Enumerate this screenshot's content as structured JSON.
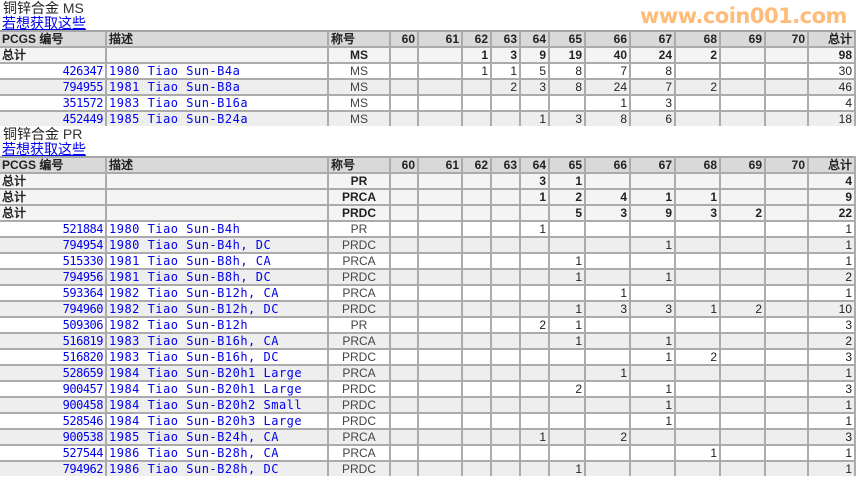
{
  "columns": [
    "PCGS 编号",
    "描述",
    "称号",
    "60",
    "61",
    "62",
    "63",
    "64",
    "65",
    "66",
    "67",
    "68",
    "69",
    "70",
    "总计"
  ],
  "sections": [
    {
      "title": "铜锌合金",
      "grade_type": "MS",
      "link": "若想获取这些",
      "totals": [
        {
          "label": "总计",
          "grade": "MS",
          "counts": [
            "",
            "",
            "1",
            "3",
            "9",
            "19",
            "40",
            "24",
            "2",
            "",
            ""
          ],
          "total": "98"
        }
      ],
      "rows": [
        {
          "code": "426347",
          "desc": "1980 Tiao Sun-B4a",
          "grade": "MS",
          "counts": [
            "",
            "",
            "1",
            "1",
            "5",
            "8",
            "7",
            "8",
            "",
            "",
            ""
          ],
          "total": "30"
        },
        {
          "code": "794955",
          "desc": "1981 Tiao Sun-B8a",
          "grade": "MS",
          "counts": [
            "",
            "",
            "",
            "2",
            "3",
            "8",
            "24",
            "7",
            "2",
            "",
            ""
          ],
          "total": "46"
        },
        {
          "code": "351572",
          "desc": "1983 Tiao Sun-B16a",
          "grade": "MS",
          "counts": [
            "",
            "",
            "",
            "",
            "",
            "",
            "1",
            "3",
            "",
            "",
            ""
          ],
          "total": "4"
        },
        {
          "code": "452449",
          "desc": "1985 Tiao Sun-B24a",
          "grade": "MS",
          "counts": [
            "",
            "",
            "",
            "",
            "1",
            "3",
            "8",
            "6",
            "",
            "",
            ""
          ],
          "total": "18"
        }
      ]
    },
    {
      "title": "铜锌合金",
      "grade_type": "PR",
      "link": "若想获取这些",
      "totals": [
        {
          "label": "总计",
          "grade": "PR",
          "counts": [
            "",
            "",
            "",
            "",
            "3",
            "1",
            "",
            "",
            "",
            "",
            ""
          ],
          "total": "4"
        },
        {
          "label": "总计",
          "grade": "PRCA",
          "counts": [
            "",
            "",
            "",
            "",
            "1",
            "2",
            "4",
            "1",
            "1",
            "",
            ""
          ],
          "total": "9"
        },
        {
          "label": "总计",
          "grade": "PRDC",
          "counts": [
            "",
            "",
            "",
            "",
            "",
            "5",
            "3",
            "9",
            "3",
            "2",
            ""
          ],
          "total": "22"
        }
      ],
      "rows": [
        {
          "code": "521884",
          "desc": "1980 Tiao Sun-B4h",
          "grade": "PR",
          "counts": [
            "",
            "",
            "",
            "",
            "1",
            "",
            "",
            "",
            "",
            "",
            ""
          ],
          "total": "1"
        },
        {
          "code": "794954",
          "desc": "1980 Tiao Sun-B4h, DC",
          "grade": "PRDC",
          "counts": [
            "",
            "",
            "",
            "",
            "",
            "",
            "",
            "1",
            "",
            "",
            ""
          ],
          "total": "1"
        },
        {
          "code": "515330",
          "desc": "1981 Tiao Sun-B8h, CA",
          "grade": "PRCA",
          "counts": [
            "",
            "",
            "",
            "",
            "",
            "1",
            "",
            "",
            "",
            "",
            ""
          ],
          "total": "1"
        },
        {
          "code": "794956",
          "desc": "1981 Tiao Sun-B8h, DC",
          "grade": "PRDC",
          "counts": [
            "",
            "",
            "",
            "",
            "",
            "1",
            "",
            "1",
            "",
            "",
            ""
          ],
          "total": "2"
        },
        {
          "code": "593364",
          "desc": "1982 Tiao Sun-B12h, CA",
          "grade": "PRCA",
          "counts": [
            "",
            "",
            "",
            "",
            "",
            "",
            "1",
            "",
            "",
            "",
            ""
          ],
          "total": "1"
        },
        {
          "code": "794960",
          "desc": "1982 Tiao Sun-B12h, DC",
          "grade": "PRDC",
          "counts": [
            "",
            "",
            "",
            "",
            "",
            "1",
            "3",
            "3",
            "1",
            "2",
            ""
          ],
          "total": "10"
        },
        {
          "code": "509306",
          "desc": "1982 Tiao Sun-B12h",
          "grade": "PR",
          "counts": [
            "",
            "",
            "",
            "",
            "2",
            "1",
            "",
            "",
            "",
            "",
            ""
          ],
          "total": "3"
        },
        {
          "code": "516819",
          "desc": "1983 Tiao Sun-B16h, CA",
          "grade": "PRCA",
          "counts": [
            "",
            "",
            "",
            "",
            "",
            "1",
            "",
            "1",
            "",
            "",
            ""
          ],
          "total": "2"
        },
        {
          "code": "516820",
          "desc": "1983 Tiao Sun-B16h, DC",
          "grade": "PRDC",
          "counts": [
            "",
            "",
            "",
            "",
            "",
            "",
            "",
            "1",
            "2",
            "",
            ""
          ],
          "total": "3"
        },
        {
          "code": "528659",
          "desc": "1984 Tiao Sun-B20h1 Large",
          "grade": "PRCA",
          "counts": [
            "",
            "",
            "",
            "",
            "",
            "",
            "1",
            "",
            "",
            "",
            ""
          ],
          "total": "1"
        },
        {
          "code": "900457",
          "desc": "1984 Tiao Sun-B20h1 Large",
          "grade": "PRDC",
          "counts": [
            "",
            "",
            "",
            "",
            "",
            "2",
            "",
            "1",
            "",
            "",
            ""
          ],
          "total": "3"
        },
        {
          "code": "900458",
          "desc": "1984 Tiao Sun-B20h2 Small",
          "grade": "PRDC",
          "counts": [
            "",
            "",
            "",
            "",
            "",
            "",
            "",
            "1",
            "",
            "",
            ""
          ],
          "total": "1"
        },
        {
          "code": "528546",
          "desc": "1984 Tiao Sun-B20h3 Large",
          "grade": "PRDC",
          "counts": [
            "",
            "",
            "",
            "",
            "",
            "",
            "",
            "1",
            "",
            "",
            ""
          ],
          "total": "1"
        },
        {
          "code": "900538",
          "desc": "1985 Tiao Sun-B24h, CA",
          "grade": "PRCA",
          "counts": [
            "",
            "",
            "",
            "",
            "1",
            "",
            "2",
            "",
            "",
            "",
            ""
          ],
          "total": "3"
        },
        {
          "code": "527544",
          "desc": "1986 Tiao Sun-B28h, CA",
          "grade": "PRCA",
          "counts": [
            "",
            "",
            "",
            "",
            "",
            "",
            "",
            "",
            "1",
            "",
            ""
          ],
          "total": "1"
        },
        {
          "code": "794962",
          "desc": "1986 Tiao Sun-B28h, DC",
          "grade": "PRDC",
          "counts": [
            "",
            "",
            "",
            "",
            "",
            "1",
            "",
            "",
            "",
            "",
            ""
          ],
          "total": "1"
        }
      ]
    }
  ],
  "watermark": "www.coin001.com"
}
